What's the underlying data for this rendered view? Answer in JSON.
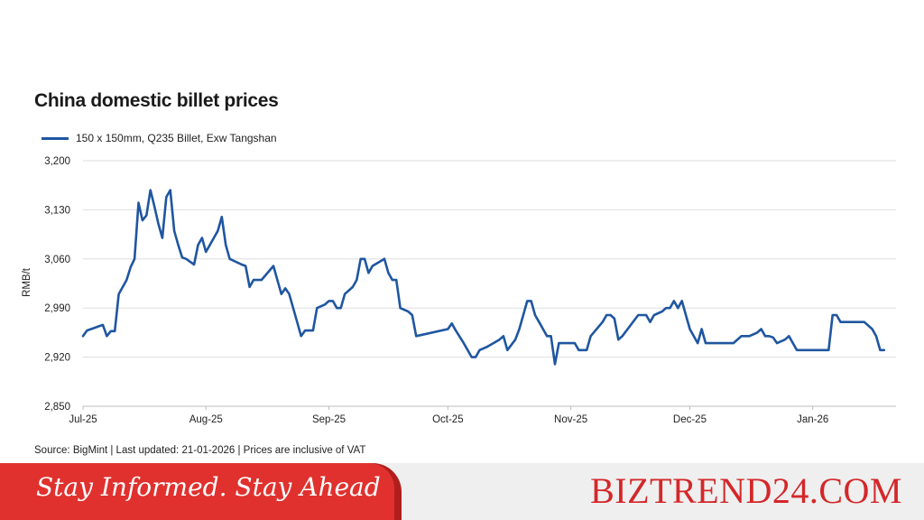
{
  "chart_data": {
    "type": "line",
    "title": "China domestic billet prices",
    "ylabel": "RMB/t",
    "xlabel": "",
    "ylim": [
      2850,
      3200
    ],
    "yticks": [
      "3,200",
      "3,130",
      "3,060",
      "2,990",
      "2,920",
      "2,850"
    ],
    "ytick_values": [
      3200,
      3130,
      3060,
      2990,
      2920,
      2850
    ],
    "xticks": [
      "Jul-25",
      "Aug-25",
      "Sep-25",
      "Oct-25",
      "Nov-25",
      "Dec-25",
      "Jan-26"
    ],
    "xtick_dates": [
      "2025-07-01",
      "2025-08-01",
      "2025-09-01",
      "2025-10-01",
      "2025-11-01",
      "2025-12-01",
      "2026-01-01"
    ],
    "grid": "horizontal",
    "legend": "top-left",
    "series": [
      {
        "name": "150 x 150mm, Q235 Billet, Exw Tangshan",
        "color": "#1f56a0",
        "points": [
          [
            "2025-07-01",
            2950
          ],
          [
            "2025-07-02",
            2958
          ],
          [
            "2025-07-04",
            2962
          ],
          [
            "2025-07-05",
            2964
          ],
          [
            "2025-07-06",
            2966
          ],
          [
            "2025-07-07",
            2950
          ],
          [
            "2025-07-08",
            2957
          ],
          [
            "2025-07-09",
            2957
          ],
          [
            "2025-07-10",
            3010
          ],
          [
            "2025-07-12",
            3030
          ],
          [
            "2025-07-13",
            3048
          ],
          [
            "2025-07-14",
            3060
          ],
          [
            "2025-07-15",
            3140
          ],
          [
            "2025-07-16",
            3115
          ],
          [
            "2025-07-17",
            3122
          ],
          [
            "2025-07-18",
            3158
          ],
          [
            "2025-07-19",
            3135
          ],
          [
            "2025-07-20",
            3110
          ],
          [
            "2025-07-21",
            3090
          ],
          [
            "2025-07-22",
            3148
          ],
          [
            "2025-07-23",
            3158
          ],
          [
            "2025-07-24",
            3100
          ],
          [
            "2025-07-25",
            3080
          ],
          [
            "2025-07-26",
            3062
          ],
          [
            "2025-07-27",
            3060
          ],
          [
            "2025-07-28",
            3056
          ],
          [
            "2025-07-29",
            3052
          ],
          [
            "2025-07-30",
            3080
          ],
          [
            "2025-07-31",
            3090
          ],
          [
            "2025-08-01",
            3070
          ],
          [
            "2025-08-02",
            3080
          ],
          [
            "2025-08-03",
            3090
          ],
          [
            "2025-08-04",
            3100
          ],
          [
            "2025-08-05",
            3120
          ],
          [
            "2025-08-06",
            3080
          ],
          [
            "2025-08-07",
            3060
          ],
          [
            "2025-08-10",
            3052
          ],
          [
            "2025-08-11",
            3050
          ],
          [
            "2025-08-12",
            3020
          ],
          [
            "2025-08-13",
            3030
          ],
          [
            "2025-08-15",
            3030
          ],
          [
            "2025-08-18",
            3050
          ],
          [
            "2025-08-20",
            3010
          ],
          [
            "2025-08-21",
            3018
          ],
          [
            "2025-08-22",
            3010
          ],
          [
            "2025-08-24",
            2970
          ],
          [
            "2025-08-25",
            2950
          ],
          [
            "2025-08-26",
            2958
          ],
          [
            "2025-08-28",
            2958
          ],
          [
            "2025-08-29",
            2990
          ],
          [
            "2025-08-31",
            2995
          ],
          [
            "2025-09-01",
            3000
          ],
          [
            "2025-09-02",
            3000
          ],
          [
            "2025-09-03",
            2990
          ],
          [
            "2025-09-04",
            2990
          ],
          [
            "2025-09-05",
            3010
          ],
          [
            "2025-09-07",
            3020
          ],
          [
            "2025-09-08",
            3030
          ],
          [
            "2025-09-09",
            3060
          ],
          [
            "2025-09-10",
            3060
          ],
          [
            "2025-09-11",
            3040
          ],
          [
            "2025-09-12",
            3050
          ],
          [
            "2025-09-15",
            3060
          ],
          [
            "2025-09-16",
            3040
          ],
          [
            "2025-09-17",
            3030
          ],
          [
            "2025-09-18",
            3030
          ],
          [
            "2025-09-19",
            2990
          ],
          [
            "2025-09-21",
            2985
          ],
          [
            "2025-09-22",
            2980
          ],
          [
            "2025-09-23",
            2950
          ],
          [
            "2025-10-01",
            2960
          ],
          [
            "2025-10-02",
            2968
          ],
          [
            "2025-10-03",
            2958
          ],
          [
            "2025-10-05",
            2940
          ],
          [
            "2025-10-06",
            2930
          ],
          [
            "2025-10-07",
            2920
          ],
          [
            "2025-10-08",
            2920
          ],
          [
            "2025-10-09",
            2930
          ],
          [
            "2025-10-11",
            2935
          ],
          [
            "2025-10-14",
            2945
          ],
          [
            "2025-10-15",
            2950
          ],
          [
            "2025-10-16",
            2930
          ],
          [
            "2025-10-18",
            2945
          ],
          [
            "2025-10-19",
            2960
          ],
          [
            "2025-10-20",
            2980
          ],
          [
            "2025-10-21",
            3000
          ],
          [
            "2025-10-22",
            3000
          ],
          [
            "2025-10-23",
            2980
          ],
          [
            "2025-10-24",
            2970
          ],
          [
            "2025-10-25",
            2960
          ],
          [
            "2025-10-26",
            2950
          ],
          [
            "2025-10-27",
            2950
          ],
          [
            "2025-10-28",
            2910
          ],
          [
            "2025-10-29",
            2940
          ],
          [
            "2025-10-30",
            2940
          ],
          [
            "2025-11-02",
            2940
          ],
          [
            "2025-11-03",
            2930
          ],
          [
            "2025-11-05",
            2930
          ],
          [
            "2025-11-06",
            2950
          ],
          [
            "2025-11-09",
            2970
          ],
          [
            "2025-11-10",
            2980
          ],
          [
            "2025-11-11",
            2980
          ],
          [
            "2025-11-12",
            2975
          ],
          [
            "2025-11-13",
            2945
          ],
          [
            "2025-11-14",
            2950
          ],
          [
            "2025-11-16",
            2965
          ],
          [
            "2025-11-18",
            2980
          ],
          [
            "2025-11-20",
            2980
          ],
          [
            "2025-11-21",
            2970
          ],
          [
            "2025-11-22",
            2980
          ],
          [
            "2025-11-24",
            2985
          ],
          [
            "2025-11-25",
            2990
          ],
          [
            "2025-11-26",
            2990
          ],
          [
            "2025-11-27",
            3000
          ],
          [
            "2025-11-28",
            2990
          ],
          [
            "2025-11-29",
            3000
          ],
          [
            "2025-11-30",
            2980
          ],
          [
            "2025-12-01",
            2960
          ],
          [
            "2025-12-03",
            2940
          ],
          [
            "2025-12-04",
            2960
          ],
          [
            "2025-12-05",
            2940
          ],
          [
            "2025-12-12",
            2940
          ],
          [
            "2025-12-14",
            2950
          ],
          [
            "2025-12-16",
            2950
          ],
          [
            "2025-12-18",
            2955
          ],
          [
            "2025-12-19",
            2960
          ],
          [
            "2025-12-20",
            2950
          ],
          [
            "2025-12-21",
            2950
          ],
          [
            "2025-12-22",
            2948
          ],
          [
            "2025-12-23",
            2940
          ],
          [
            "2025-12-25",
            2945
          ],
          [
            "2025-12-26",
            2950
          ],
          [
            "2025-12-28",
            2930
          ],
          [
            "2026-01-05",
            2930
          ],
          [
            "2026-01-06",
            2980
          ],
          [
            "2026-01-07",
            2980
          ],
          [
            "2026-01-08",
            2970
          ],
          [
            "2026-01-10",
            2970
          ],
          [
            "2026-01-14",
            2970
          ],
          [
            "2026-01-16",
            2960
          ],
          [
            "2026-01-17",
            2950
          ],
          [
            "2026-01-18",
            2930
          ],
          [
            "2026-01-19",
            2930
          ]
        ]
      }
    ],
    "source": "Source: BigMint | Last updated: 21-01-2026 | Prices are inclusive of VAT"
  },
  "footer": {
    "tagline": "Stay Informed. Stay Ahead",
    "brand": "BIZTREND24.COM",
    "banner_color": "#e0312e",
    "brand_color": "#d4272a"
  }
}
